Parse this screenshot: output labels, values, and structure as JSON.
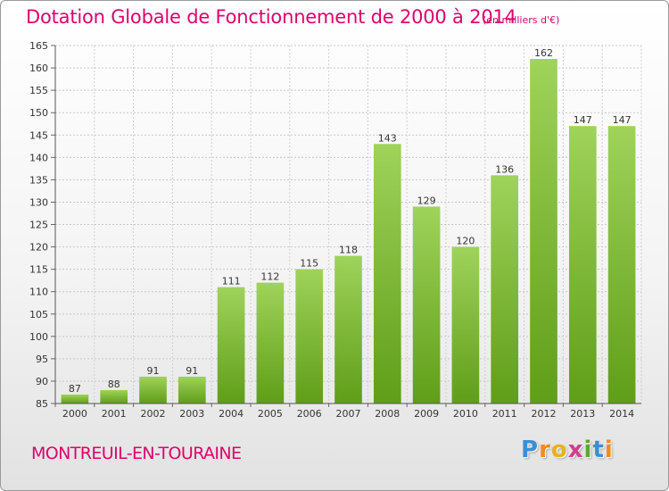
{
  "chart_data": {
    "type": "bar",
    "title": "Dotation Globale de Fonctionnement de 2000 à 2014",
    "unit_note": "(en milliers d'€)",
    "xlabel": "",
    "ylabel": "",
    "categories": [
      "2000",
      "2001",
      "2002",
      "2003",
      "2004",
      "2005",
      "2006",
      "2007",
      "2008",
      "2009",
      "2010",
      "2011",
      "2012",
      "2013",
      "2014"
    ],
    "values": [
      87,
      88,
      91,
      91,
      111,
      112,
      115,
      118,
      143,
      129,
      120,
      136,
      162,
      147,
      147
    ],
    "ylim": [
      85,
      165
    ],
    "yticks": [
      85,
      90,
      95,
      100,
      105,
      110,
      115,
      120,
      125,
      130,
      135,
      140,
      145,
      150,
      155,
      160,
      165
    ],
    "grid": true,
    "legend": "none"
  },
  "commune": "MONTREUIL-EN-TOURAINE",
  "logo": {
    "letters": [
      "P",
      "r",
      "o",
      "x",
      "i",
      "t",
      "i"
    ],
    "colors": [
      "#3a8fd6",
      "#f28a1c",
      "#e8b21b",
      "#d23c8c",
      "#5aa832",
      "#3a8fd6",
      "#f28a1c"
    ]
  },
  "colors": {
    "accent": "#e0006c",
    "bar_light": "#9fd35a",
    "bar_dark": "#5f9e18"
  }
}
